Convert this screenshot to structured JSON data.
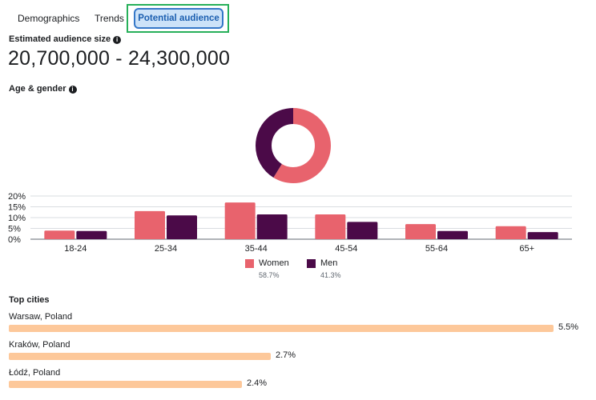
{
  "tabs": [
    {
      "label": "Demographics"
    },
    {
      "label": "Trends"
    },
    {
      "label": "Potential audience",
      "active": true
    }
  ],
  "audience_size": {
    "label": "Estimated audience size",
    "value": "20,700,000 - 24,300,000"
  },
  "age_gender": {
    "label": "Age & gender",
    "legend": [
      {
        "name": "Women",
        "pct": "58.7%"
      },
      {
        "name": "Men",
        "pct": "41.3%"
      }
    ]
  },
  "colors": {
    "women": "#e8636d",
    "men": "#4b0a48",
    "city_bar": "#fdc89a",
    "accent": "#1c5fb0",
    "highlight": "#27b05a"
  },
  "chart_data": {
    "type": "bar",
    "categories": [
      "18-24",
      "25-34",
      "35-44",
      "45-54",
      "55-64",
      "65+"
    ],
    "series": [
      {
        "name": "Women",
        "values": [
          4,
          13,
          17,
          11.5,
          7,
          6
        ]
      },
      {
        "name": "Men",
        "values": [
          3.8,
          11,
          11.5,
          8,
          3.8,
          3.3
        ]
      }
    ],
    "yticks": [
      "20%",
      "15%",
      "10%",
      "5%",
      "0%"
    ],
    "ylim": [
      0,
      20
    ],
    "donut": [
      {
        "name": "Women",
        "value": 58.7
      },
      {
        "name": "Men",
        "value": 41.3
      }
    ]
  },
  "top_cities": {
    "label": "Top cities",
    "items": [
      {
        "name": "Warsaw, Poland",
        "pct": "5.5%",
        "value": 5.5
      },
      {
        "name": "Kraków, Poland",
        "pct": "2.7%",
        "value": 2.7
      },
      {
        "name": "Łódź, Poland",
        "pct": "2.4%",
        "value": 2.4
      }
    ]
  }
}
